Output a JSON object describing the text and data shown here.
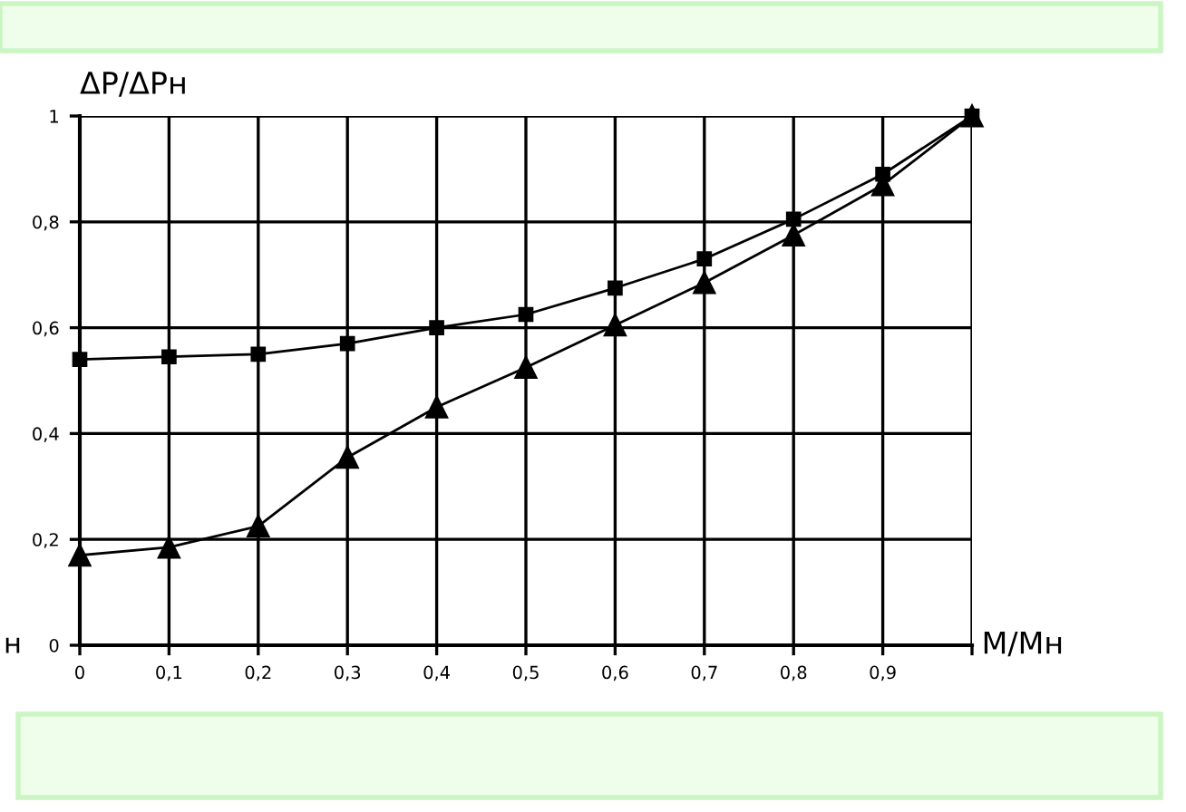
{
  "chart_data": {
    "type": "line",
    "xlabel": "M/Mн",
    "ylabel": "ΔP/ΔPн",
    "x": [
      0,
      0.1,
      0.2,
      0.3,
      0.4,
      0.5,
      0.6,
      0.7,
      0.8,
      0.9,
      1.0
    ],
    "series": [
      {
        "color": "#000000",
        "marker": "square",
        "values": [
          0.54,
          0.545,
          0.55,
          0.57,
          0.6,
          0.625,
          0.675,
          0.73,
          0.805,
          0.89,
          1.0
        ]
      },
      {
        "color": "#000000",
        "marker": "triangle",
        "values": [
          0.17,
          0.185,
          0.225,
          0.355,
          0.45,
          0.525,
          0.605,
          0.685,
          0.775,
          0.87,
          1.0
        ]
      }
    ],
    "xlim": [
      0,
      1
    ],
    "ylim": [
      0,
      1
    ],
    "xticks": [
      0,
      {
        "value": 0.1,
        "label": "0,1"
      },
      {
        "value": 0.2,
        "label": "0,2"
      },
      {
        "value": 0.3,
        "label": "0,3"
      },
      {
        "value": 0.4,
        "label": "0,4"
      },
      {
        "value": 0.5,
        "label": "0,5"
      },
      {
        "value": 0.6,
        "label": "0,6"
      },
      {
        "value": 0.7,
        "label": "0,7"
      },
      {
        "value": 0.8,
        "label": "0,8"
      },
      {
        "value": 0.9,
        "label": "0,9"
      },
      {
        "value": 1.0,
        "label": null
      }
    ],
    "yticks": [
      0,
      {
        "value": 0.2,
        "label": "0,2"
      },
      {
        "value": 0.4,
        "label": "0,4"
      },
      {
        "value": 0.6,
        "label": "0,6"
      },
      {
        "value": 0.8,
        "label": "0,8"
      },
      1
    ],
    "annotations": [
      "н"
    ],
    "grid": true,
    "line_style": "solid",
    "legend": false
  }
}
